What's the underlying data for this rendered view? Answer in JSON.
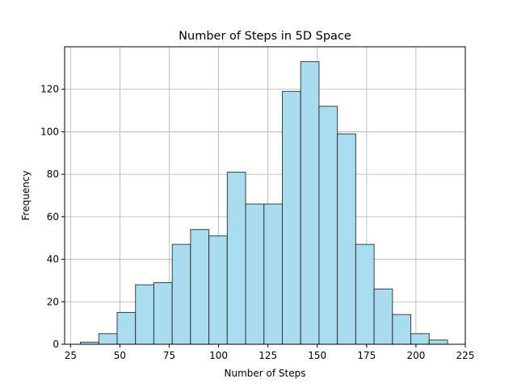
{
  "chart_data": {
    "type": "bar",
    "title": "Number of Steps in 5D Space",
    "xlabel": "Number of Steps",
    "ylabel": "Frequency",
    "xlim": [
      22,
      225
    ],
    "ylim": [
      0,
      140
    ],
    "xticks": [
      25,
      50,
      75,
      100,
      125,
      150,
      175,
      200,
      225
    ],
    "yticks": [
      0,
      20,
      40,
      60,
      80,
      100,
      120
    ],
    "grid": true,
    "bar_color": "#a8dcee",
    "edge_color": "#222222",
    "bins": [
      {
        "start": 30.0,
        "end": 39.3,
        "count": 1
      },
      {
        "start": 39.3,
        "end": 48.6,
        "count": 5
      },
      {
        "start": 48.6,
        "end": 57.9,
        "count": 15
      },
      {
        "start": 57.9,
        "end": 67.2,
        "count": 28
      },
      {
        "start": 67.2,
        "end": 76.5,
        "count": 29
      },
      {
        "start": 76.5,
        "end": 85.8,
        "count": 47
      },
      {
        "start": 85.8,
        "end": 95.1,
        "count": 54
      },
      {
        "start": 95.1,
        "end": 104.4,
        "count": 51
      },
      {
        "start": 104.4,
        "end": 113.7,
        "count": 81
      },
      {
        "start": 113.7,
        "end": 123.0,
        "count": 66
      },
      {
        "start": 123.0,
        "end": 132.3,
        "count": 66
      },
      {
        "start": 132.3,
        "end": 141.6,
        "count": 119
      },
      {
        "start": 141.6,
        "end": 150.9,
        "count": 133
      },
      {
        "start": 150.9,
        "end": 160.2,
        "count": 112
      },
      {
        "start": 160.2,
        "end": 169.5,
        "count": 99
      },
      {
        "start": 169.5,
        "end": 178.8,
        "count": 47
      },
      {
        "start": 178.8,
        "end": 188.1,
        "count": 26
      },
      {
        "start": 188.1,
        "end": 197.4,
        "count": 14
      },
      {
        "start": 197.4,
        "end": 206.7,
        "count": 5
      },
      {
        "start": 206.7,
        "end": 216.0,
        "count": 2
      }
    ]
  }
}
